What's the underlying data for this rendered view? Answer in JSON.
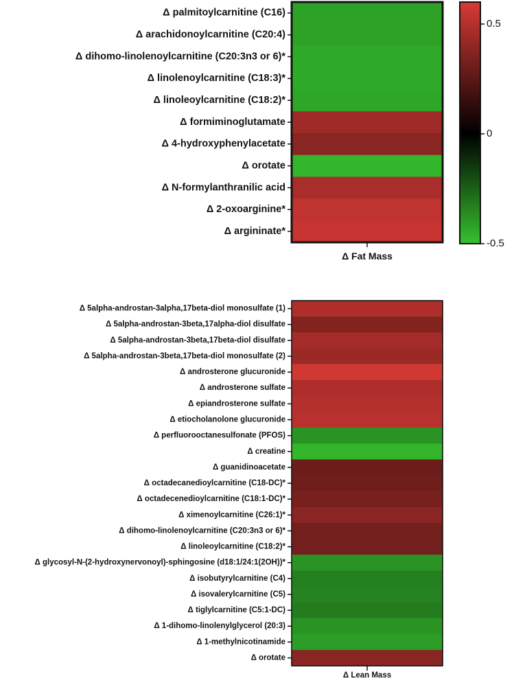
{
  "chart_data": [
    {
      "type": "heatmap",
      "xlabel": "Δ Fat Mass",
      "rows": [
        {
          "label": "Δ palmitoylcarnitine (C16)",
          "value": -0.42
        },
        {
          "label": "Δ arachidonoylcarnitine (C20:4)",
          "value": -0.42
        },
        {
          "label": "Δ dihomo-linolenoylcarnitine (C20:3n3 or 6)*",
          "value": -0.44
        },
        {
          "label": "Δ linolenoylcarnitine (C18:3)*",
          "value": -0.44
        },
        {
          "label": "Δ linoleoylcarnitine (C18:2)*",
          "value": -0.43
        },
        {
          "label": "Δ formiminoglutamate",
          "value": 0.44
        },
        {
          "label": "Δ 4-hydroxyphenylacetate",
          "value": 0.38
        },
        {
          "label": "Δ orotate",
          "value": -0.47
        },
        {
          "label": "Δ N-formylanthranilic acid",
          "value": 0.47
        },
        {
          "label": "Δ 2-oxoarginine*",
          "value": 0.53
        },
        {
          "label": "Δ argininate*",
          "value": 0.55
        }
      ],
      "colorbar": {
        "min": -0.5,
        "max": 0.6,
        "ticks": [
          {
            "value": 0.5,
            "label": "0.5"
          },
          {
            "value": 0,
            "label": "0"
          },
          {
            "value": -0.5,
            "label": "-0.5"
          }
        ],
        "colors": {
          "negative": "#36c12f",
          "zero": "#000000",
          "positive": "#d83a36"
        }
      }
    },
    {
      "type": "heatmap",
      "xlabel": "Δ Lean Mass",
      "rows": [
        {
          "label": "Δ 5alpha-androstan-3alpha,17beta-diol monosulfate (1)",
          "value": 0.48
        },
        {
          "label": "Δ 5alpha-androstan-3beta,17alpha-diol disulfate",
          "value": 0.36
        },
        {
          "label": "Δ 5alpha-androstan-3beta,17beta-diol disulfate",
          "value": 0.46
        },
        {
          "label": "Δ 5alpha-androstan-3beta,17beta-diol monosulfate (2)",
          "value": 0.43
        },
        {
          "label": "Δ androsterone glucuronide",
          "value": 0.58
        },
        {
          "label": "Δ androsterone sulfate",
          "value": 0.48
        },
        {
          "label": "Δ epiandrosterone sulfate",
          "value": 0.5
        },
        {
          "label": "Δ etiocholanolone glucuronide",
          "value": 0.51
        },
        {
          "label": "Δ perfluorooctanesulfonate (PFOS)",
          "value": -0.38
        },
        {
          "label": "Δ creatine",
          "value": -0.47
        },
        {
          "label": "Δ guanidinoacetate",
          "value": 0.3
        },
        {
          "label": "Δ octadecanedioylcarnitine (C18-DC)*",
          "value": 0.31
        },
        {
          "label": "Δ octadecenedioylcarnitine (C18:1-DC)*",
          "value": 0.33
        },
        {
          "label": "Δ ximenoylcarnitine (C26:1)*",
          "value": 0.38
        },
        {
          "label": "Δ dihomo-linolenoylcarnitine (C20:3n3 or 6)*",
          "value": 0.32
        },
        {
          "label": "Δ linoleoylcarnitine (C18:2)*",
          "value": 0.32
        },
        {
          "label": "Δ glycosyl-N-(2-hydroxynervonoyl)-sphingosine (d18:1/24:1(2OH))*",
          "value": -0.38
        },
        {
          "label": "Δ isobutyrylcarnitine (C4)",
          "value": -0.33
        },
        {
          "label": "Δ isovalerylcarnitine (C5)",
          "value": -0.34
        },
        {
          "label": "Δ tiglylcarnitine (C5:1-DC)",
          "value": -0.32
        },
        {
          "label": "Δ 1-dihomo-linolenylglycerol (20:3)",
          "value": -0.38
        },
        {
          "label": "Δ 1-methylnicotinamide",
          "value": -0.41
        },
        {
          "label": "Δ orotate",
          "value": 0.38
        }
      ]
    }
  ]
}
